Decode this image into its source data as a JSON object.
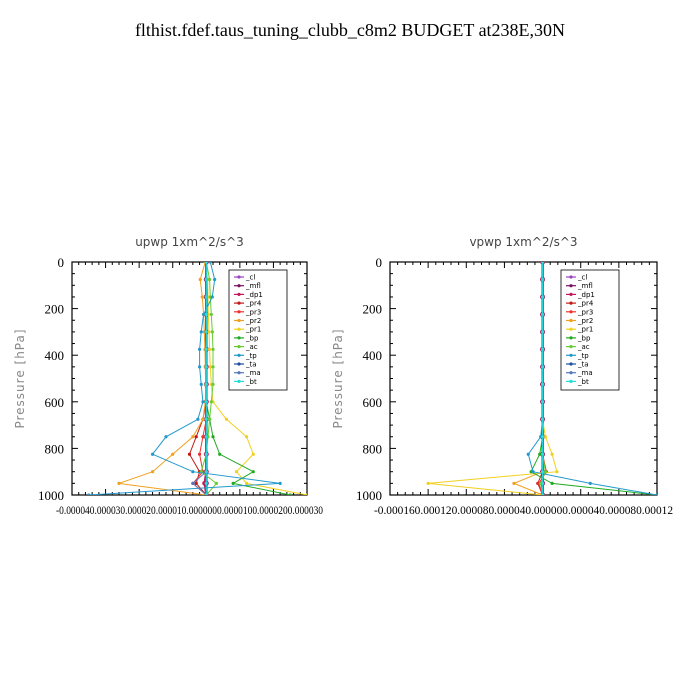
{
  "page": {
    "title": "flthist.fdef.taus_tuning_clubb_c8m2  BUDGET at238E,30N"
  },
  "legend_entries": [
    {
      "label": "_cl",
      "color": "#9a44c4"
    },
    {
      "label": "_mfl",
      "color": "#7a1060"
    },
    {
      "label": "_dp1",
      "color": "#c0185a"
    },
    {
      "label": "_pr4",
      "color": "#c41818"
    },
    {
      "label": "_pr3",
      "color": "#ee3030"
    },
    {
      "label": "_pr2",
      "color": "#f0a020"
    },
    {
      "label": "_pr1",
      "color": "#f0d020"
    },
    {
      "label": "_bp",
      "color": "#22aa22"
    },
    {
      "label": "_ac",
      "color": "#66cc33"
    },
    {
      "label": "_tp",
      "color": "#2299cc"
    },
    {
      "label": "_ta",
      "color": "#1d4fa0"
    },
    {
      "label": "_ma",
      "color": "#5577bb"
    },
    {
      "label": "_bt",
      "color": "#22dddd"
    }
  ],
  "chart_data": [
    {
      "type": "line",
      "title": "upwp   1xm^2/s^3",
      "ylabel": "Pressure [hPa]",
      "xlabel": "",
      "xlim": [
        -4e-05,
        3e-05
      ],
      "ylim": [
        1000,
        0
      ],
      "x_tick_values": [
        -4e-05,
        -3e-05,
        -2e-05,
        -1e-05,
        0,
        1e-05,
        2e-05,
        3e-05
      ],
      "x_tick_labels_text": "-0.000040.000030.000020.000010.0000000.0000100.0000200.000030",
      "y_ticks": [
        0,
        200,
        400,
        600,
        800,
        1000
      ],
      "series": [
        {
          "name": "_cl",
          "x": [
            0,
            0,
            0,
            0,
            0,
            0,
            0,
            0,
            0,
            0,
            0,
            0,
            0,
            0,
            0
          ],
          "y": [
            0,
            75,
            150,
            225,
            300,
            375,
            450,
            525,
            600,
            675,
            750,
            825,
            900,
            950,
            1000
          ]
        },
        {
          "name": "_mfl",
          "x": [
            0,
            0,
            0,
            0,
            0,
            0,
            0,
            0,
            0,
            0,
            0,
            0,
            0,
            0,
            0
          ],
          "y": [
            0,
            75,
            150,
            225,
            300,
            375,
            450,
            525,
            600,
            675,
            750,
            825,
            900,
            950,
            1000
          ]
        },
        {
          "name": "_dp1",
          "x": [
            0,
            0,
            0,
            0,
            0,
            0,
            0,
            0,
            0,
            0,
            0,
            0,
            0,
            -5e-07,
            0
          ],
          "y": [
            0,
            75,
            150,
            225,
            300,
            375,
            450,
            525,
            600,
            675,
            750,
            825,
            900,
            950,
            1000
          ]
        },
        {
          "name": "_pr4",
          "x": [
            0,
            0,
            0,
            0,
            0,
            0,
            0,
            0,
            0,
            -1e-06,
            -3e-06,
            -5e-06,
            -2e-06,
            -3e-06,
            0
          ],
          "y": [
            0,
            75,
            150,
            225,
            300,
            375,
            450,
            525,
            600,
            675,
            750,
            825,
            900,
            950,
            1000
          ]
        },
        {
          "name": "_pr3",
          "x": [
            0,
            0,
            0,
            0,
            0,
            0,
            0,
            0,
            0,
            0,
            -1e-06,
            -2e-06,
            -1e-06,
            -4e-06,
            0
          ],
          "y": [
            0,
            75,
            150,
            225,
            300,
            375,
            450,
            525,
            600,
            675,
            750,
            825,
            900,
            950,
            1000
          ]
        },
        {
          "name": "_pr2",
          "x": [
            -3e-07,
            -1.8e-06,
            -1.2e-06,
            -8e-07,
            -6e-07,
            -4e-07,
            -3e-07,
            -2e-07,
            -3e-07,
            -1e-06,
            -4e-06,
            -1e-05,
            -1.6e-05,
            -2.6e-05,
            0
          ],
          "y": [
            0,
            75,
            150,
            225,
            300,
            375,
            450,
            525,
            600,
            675,
            750,
            825,
            900,
            950,
            1000
          ]
        },
        {
          "name": "_pr1",
          "x": [
            0,
            4e-07,
            5e-07,
            6e-07,
            8e-07,
            1e-06,
            1.2e-06,
            1.5e-06,
            2e-06,
            6e-06,
            1.2e-05,
            1.4e-05,
            9e-06,
            1.2e-05,
            3e-05
          ],
          "y": [
            0,
            75,
            150,
            225,
            300,
            375,
            450,
            525,
            600,
            675,
            750,
            825,
            900,
            950,
            1000
          ]
        },
        {
          "name": "_bp",
          "x": [
            0,
            0,
            0,
            0,
            0,
            0,
            0,
            0,
            0,
            1e-06,
            2e-06,
            4e-06,
            1.4e-05,
            8e-06,
            2.5e-05
          ],
          "y": [
            0,
            75,
            150,
            225,
            300,
            375,
            450,
            525,
            600,
            675,
            750,
            825,
            900,
            950,
            1000
          ]
        },
        {
          "name": "_ac",
          "x": [
            0,
            1e-06,
            1.2e-06,
            1.5e-06,
            1.8e-06,
            2e-06,
            2e-06,
            2e-06,
            1.5e-06,
            1e-06,
            5e-07,
            0,
            -1.5e-06,
            3e-06,
            0
          ],
          "y": [
            0,
            75,
            150,
            225,
            300,
            375,
            450,
            525,
            600,
            675,
            750,
            825,
            900,
            950,
            1000
          ]
        },
        {
          "name": "_tp",
          "x": [
            1.2e-06,
            2.5e-06,
            1.8e-06,
            -8e-07,
            -1.5e-06,
            -2e-06,
            -2e-06,
            -1.5e-06,
            -1e-06,
            -2.5e-06,
            -1.2e-05,
            -1.6e-05,
            -4e-06,
            2.2e-05,
            -3.5e-05
          ],
          "y": [
            0,
            75,
            150,
            225,
            300,
            375,
            450,
            525,
            600,
            675,
            750,
            825,
            900,
            950,
            1000
          ]
        },
        {
          "name": "_ta",
          "x": [
            0,
            0,
            0,
            0,
            0,
            0,
            0,
            0,
            0,
            0,
            0,
            0,
            0,
            0,
            0
          ],
          "y": [
            0,
            75,
            150,
            225,
            300,
            375,
            450,
            525,
            600,
            675,
            750,
            825,
            900,
            950,
            1000
          ]
        },
        {
          "name": "_ma",
          "x": [
            0,
            0,
            0,
            0,
            0,
            0,
            0,
            0,
            0,
            0,
            0,
            0,
            0,
            -4e-06,
            0
          ],
          "y": [
            0,
            75,
            150,
            225,
            300,
            375,
            450,
            525,
            600,
            675,
            750,
            825,
            900,
            950,
            1000
          ]
        },
        {
          "name": "_bt",
          "x": [
            0,
            0,
            0,
            0,
            0,
            0,
            0,
            0,
            0,
            0,
            0,
            0,
            0,
            0,
            0
          ],
          "y": [
            0,
            75,
            150,
            225,
            300,
            375,
            450,
            525,
            600,
            675,
            750,
            825,
            900,
            950,
            1000
          ]
        }
      ]
    },
    {
      "type": "line",
      "title": "vpwp   1xm^2/s^3",
      "ylabel": "Pressure [hPa]",
      "xlabel": "",
      "xlim": [
        -0.00016,
        0.00012
      ],
      "ylim": [
        1000,
        0
      ],
      "x_tick_values": [
        -0.00016,
        -0.00012,
        -8e-05,
        -4e-05,
        0,
        4e-05,
        8e-05,
        0.00012
      ],
      "x_tick_labels_text": "-0.000160.000120.000080.000040.000000.000040.000080.00012",
      "y_ticks": [
        0,
        200,
        400,
        600,
        800,
        1000
      ],
      "series": [
        {
          "name": "_cl",
          "x": [
            0,
            0,
            0,
            0,
            0,
            0,
            0,
            0,
            0,
            0,
            0,
            0,
            0,
            0,
            0
          ],
          "y": [
            0,
            75,
            150,
            225,
            300,
            375,
            450,
            525,
            600,
            675,
            750,
            825,
            900,
            950,
            1000
          ]
        },
        {
          "name": "_mfl",
          "x": [
            0,
            0,
            0,
            0,
            0,
            0,
            0,
            0,
            0,
            0,
            0,
            0,
            0,
            0,
            0
          ],
          "y": [
            0,
            75,
            150,
            225,
            300,
            375,
            450,
            525,
            600,
            675,
            750,
            825,
            900,
            950,
            1000
          ]
        },
        {
          "name": "_dp1",
          "x": [
            0,
            0,
            0,
            0,
            0,
            0,
            0,
            0,
            0,
            0,
            0,
            0,
            0,
            0,
            0
          ],
          "y": [
            0,
            75,
            150,
            225,
            300,
            375,
            450,
            525,
            600,
            675,
            750,
            825,
            900,
            950,
            1000
          ]
        },
        {
          "name": "_pr4",
          "x": [
            0,
            0,
            0,
            0,
            0,
            0,
            0,
            0,
            0,
            0,
            0,
            0,
            0,
            -5e-06,
            0
          ],
          "y": [
            0,
            75,
            150,
            225,
            300,
            375,
            450,
            525,
            600,
            675,
            750,
            825,
            900,
            950,
            1000
          ]
        },
        {
          "name": "_pr3",
          "x": [
            0,
            0,
            0,
            0,
            0,
            0,
            0,
            0,
            0,
            0,
            0,
            0,
            4e-06,
            -4e-06,
            0
          ],
          "y": [
            0,
            75,
            150,
            225,
            300,
            375,
            450,
            525,
            600,
            675,
            750,
            825,
            900,
            950,
            1000
          ]
        },
        {
          "name": "_pr2",
          "x": [
            0,
            0,
            0,
            0,
            0,
            0,
            0,
            0,
            0,
            0,
            0,
            0,
            0,
            -3e-05,
            0
          ],
          "y": [
            0,
            75,
            150,
            225,
            300,
            375,
            450,
            525,
            600,
            675,
            750,
            825,
            900,
            950,
            1000
          ]
        },
        {
          "name": "_pr1",
          "x": [
            0,
            0,
            0,
            0,
            0,
            0,
            0,
            0,
            0,
            0,
            3e-06,
            1e-05,
            1.5e-05,
            -0.00012,
            0
          ],
          "y": [
            0,
            75,
            150,
            225,
            300,
            375,
            450,
            525,
            600,
            675,
            750,
            825,
            900,
            950,
            1000
          ]
        },
        {
          "name": "_bp",
          "x": [
            0,
            0,
            0,
            0,
            0,
            0,
            0,
            0,
            0,
            0,
            0,
            -3e-06,
            -1.2e-05,
            1e-05,
            0.00012
          ],
          "y": [
            0,
            75,
            150,
            225,
            300,
            375,
            450,
            525,
            600,
            675,
            750,
            825,
            900,
            950,
            1000
          ]
        },
        {
          "name": "_ac",
          "x": [
            0,
            0,
            0,
            0,
            0,
            0,
            0,
            0,
            0,
            0,
            0,
            0,
            3e-06,
            -2e-06,
            0
          ],
          "y": [
            0,
            75,
            150,
            225,
            300,
            375,
            450,
            525,
            600,
            675,
            750,
            825,
            900,
            950,
            1000
          ]
        },
        {
          "name": "_tp",
          "x": [
            0,
            0,
            0,
            0,
            0,
            0,
            0,
            0,
            0,
            0,
            -2e-06,
            -1.5e-05,
            -1e-05,
            5e-05,
            0.00012
          ],
          "y": [
            0,
            75,
            150,
            225,
            300,
            375,
            450,
            525,
            600,
            675,
            750,
            825,
            900,
            950,
            1000
          ]
        },
        {
          "name": "_ta",
          "x": [
            0,
            0,
            0,
            0,
            0,
            0,
            0,
            0,
            0,
            0,
            0,
            0,
            0,
            0,
            0
          ],
          "y": [
            0,
            75,
            150,
            225,
            300,
            375,
            450,
            525,
            600,
            675,
            750,
            825,
            900,
            950,
            1000
          ]
        },
        {
          "name": "_ma",
          "x": [
            0,
            0,
            0,
            0,
            0,
            0,
            0,
            0,
            0,
            0,
            0,
            0,
            0,
            0,
            0
          ],
          "y": [
            0,
            75,
            150,
            225,
            300,
            375,
            450,
            525,
            600,
            675,
            750,
            825,
            900,
            950,
            1000
          ]
        },
        {
          "name": "_bt",
          "x": [
            0,
            0,
            0,
            0,
            0,
            0,
            0,
            0,
            0,
            0,
            0,
            0,
            0,
            0,
            0
          ],
          "y": [
            0,
            75,
            150,
            225,
            300,
            375,
            450,
            525,
            600,
            675,
            750,
            825,
            900,
            950,
            1000
          ]
        }
      ]
    }
  ]
}
